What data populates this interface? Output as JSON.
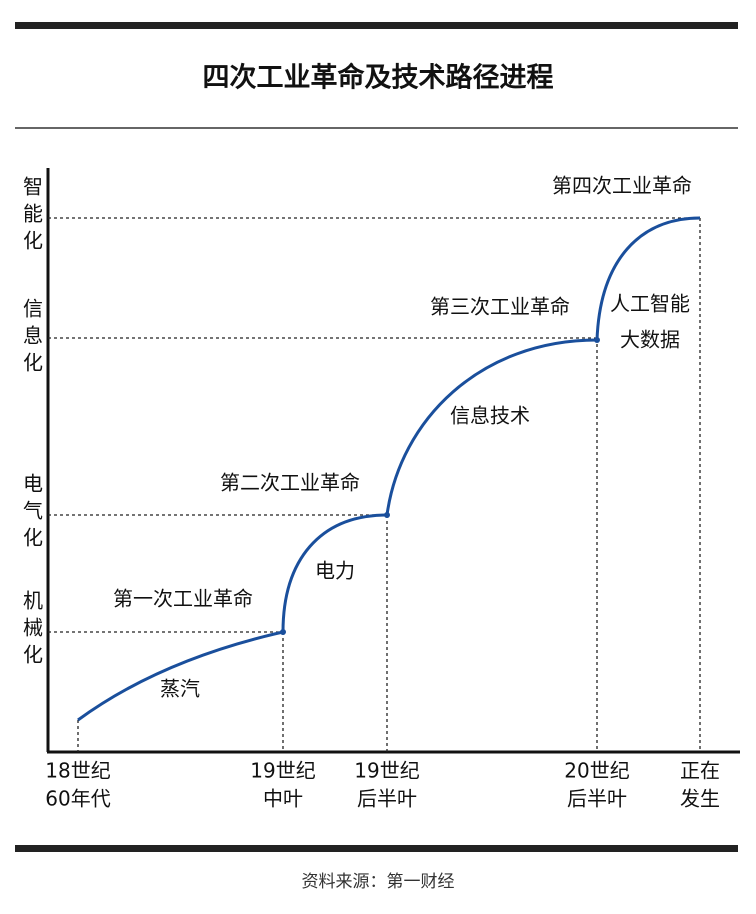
{
  "title": "四次工业革命及技术路径进程",
  "y_labels": [
    "智能化",
    "信息化",
    "电气化",
    "机械化"
  ],
  "x_labels": [
    [
      "18世纪",
      "60年代"
    ],
    [
      "19世纪",
      "中叶"
    ],
    [
      "19世纪",
      "后半叶"
    ],
    [
      "20世纪",
      "后半叶"
    ],
    [
      "正在",
      "发生"
    ]
  ],
  "stages": [
    {
      "revolution": "第一次工业革命",
      "technology": [
        "蒸汽"
      ]
    },
    {
      "revolution": "第二次工业革命",
      "technology": [
        "电力"
      ]
    },
    {
      "revolution": "第三次工业革命",
      "technology": [
        "信息技术"
      ]
    },
    {
      "revolution": "第四次工业革命",
      "technology": [
        "人工智能",
        "大数据"
      ]
    }
  ],
  "source": "资料来源：第一财经"
}
